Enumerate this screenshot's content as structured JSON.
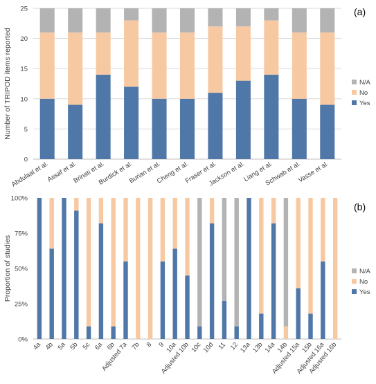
{
  "colors": {
    "yes": "#4f77a8",
    "no": "#f7c9a2",
    "na": "#b3b3b3",
    "grid": "#d9d9d9",
    "axis": "#bfbfbf"
  },
  "chart_data": [
    {
      "type": "bar",
      "stacked": true,
      "panel_label": "(a)",
      "ylabel": "Number of TRIPOD items reported",
      "ylim": [
        0,
        25
      ],
      "yticks": [
        "0",
        "5",
        "10",
        "15",
        "20",
        "25"
      ],
      "ytick_values": [
        0,
        5,
        10,
        15,
        20,
        25
      ],
      "grid": true,
      "legend_position": "right",
      "categories": [
        "Abdulaal et al.",
        "Assaf et al.",
        "Brinati et al.",
        "Burdick et al.",
        "Burian et al.",
        "Cheng et al.",
        "Fraser et al.",
        "Jackson et al.",
        "Liang et al.",
        "Schwab et al.",
        "Vasse et al."
      ],
      "series": [
        {
          "name": "Yes",
          "color_key": "yes",
          "values": [
            10,
            9,
            14,
            12,
            10,
            10,
            11,
            13,
            14,
            10,
            9
          ]
        },
        {
          "name": "No",
          "color_key": "no",
          "values": [
            11,
            12,
            7,
            11,
            11,
            11,
            11,
            9,
            9,
            11,
            12
          ]
        },
        {
          "name": "N/A",
          "color_key": "na",
          "values": [
            4,
            4,
            4,
            2,
            4,
            4,
            3,
            3,
            2,
            4,
            4
          ]
        }
      ]
    },
    {
      "type": "bar",
      "stacked": true,
      "panel_label": "(b)",
      "ylabel": "Proportion of studies",
      "ylim": [
        0,
        100
      ],
      "yticks": [
        "0%",
        "25%",
        "50%",
        "75%",
        "100%"
      ],
      "ytick_values": [
        0,
        25,
        50,
        75,
        100
      ],
      "grid": false,
      "legend_position": "right",
      "categories": [
        "4a",
        "4b",
        "5a",
        "5b",
        "5c",
        "6a",
        "6b",
        "Adjusted 7a",
        "7b",
        "8",
        "9",
        "10a",
        "Adjusted 10b",
        "10c",
        "10d",
        "11",
        "12",
        "13a",
        "13b",
        "14a",
        "14b",
        "Adjusted 15a",
        "15b",
        "Adjusted 16a",
        "Adjusted 16b"
      ],
      "series": [
        {
          "name": "Yes",
          "color_key": "yes",
          "values": [
            100,
            64,
            100,
            91,
            9,
            82,
            9,
            55,
            0,
            0,
            55,
            64,
            45,
            9,
            82,
            27,
            9,
            100,
            18,
            82,
            0,
            36,
            18,
            55,
            0
          ]
        },
        {
          "name": "No",
          "color_key": "no",
          "values": [
            0,
            36,
            0,
            9,
            91,
            18,
            91,
            45,
            100,
            100,
            45,
            36,
            55,
            0,
            18,
            0,
            0,
            0,
            82,
            18,
            9,
            64,
            82,
            45,
            100
          ]
        },
        {
          "name": "N/A",
          "color_key": "na",
          "values": [
            0,
            0,
            0,
            0,
            0,
            0,
            0,
            0,
            0,
            0,
            0,
            0,
            0,
            91,
            0,
            73,
            91,
            0,
            0,
            0,
            91,
            0,
            0,
            0,
            0
          ]
        }
      ]
    }
  ]
}
